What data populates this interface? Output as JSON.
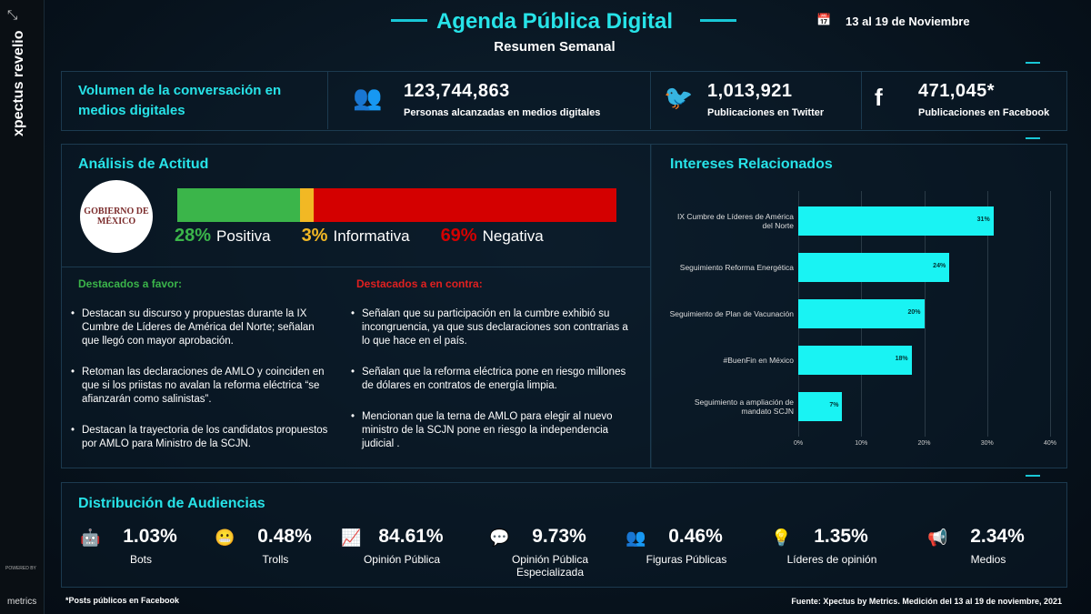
{
  "header": {
    "title": "Agenda Pública Digital",
    "subtitle": "Resumen Semanal",
    "date": "13 al 19 de Noviembre",
    "brand": "xpectus revelio",
    "powered": "POWERED BY",
    "powered_brand": "metrics"
  },
  "volume": {
    "label": "Volumen de la conversación en medios digitales",
    "stats": [
      {
        "value": "123,744,863",
        "label": "Personas alcanzadas en medios digitales"
      },
      {
        "value": "1,013,921",
        "label": "Publicaciones en Twitter"
      },
      {
        "value": "471,045*",
        "label": "Publicaciones en Facebook"
      }
    ]
  },
  "logo": "GOBIERNO DE MÉXICO",
  "favor": {
    "title": "Destacados a favor:",
    "items": [
      "Destacan su discurso y propuestas durante la IX Cumbre de Líderes de América del Norte; señalan que llegó con mayor aprobación.",
      "Retoman las declaraciones de AMLO y coinciden en que si los priistas no avalan la reforma eléctrica “se afianzarán como salinistas”.",
      "Destacan la trayectoria de los candidatos propuestos por AMLO para Ministro de la SCJN."
    ]
  },
  "contra": {
    "title": "Destacados a en contra:",
    "items": [
      "Señalan que su participación en la cumbre exhibió su incongruencia, ya que sus declaraciones son contrarias a lo que hace en el país.",
      "Señalan que la reforma eléctrica pone en riesgo millones de dólares en contratos de energía limpia.",
      "Mencionan que la terna de AMLO para elegir al nuevo ministro de la SCJN pone en riesgo la independencia judicial ."
    ]
  },
  "chart_data": [
    {
      "type": "stacked-bar",
      "title": "Análisis de Actitud",
      "xlim": [
        0,
        100
      ],
      "series": [
        {
          "name": "Positiva",
          "color": "#3bb54a",
          "values": [
            28
          ],
          "value_labels": [
            "28%"
          ]
        },
        {
          "name": "Informativa",
          "color": "#f2b824",
          "values": [
            3
          ],
          "value_labels": [
            "3%"
          ]
        },
        {
          "name": "Negativa",
          "color": "#d40000",
          "values": [
            69
          ],
          "value_labels": [
            "69%"
          ]
        }
      ]
    },
    {
      "type": "bar",
      "orientation": "horizontal",
      "title": "Intereses Relacionados",
      "categories": [
        "IX Cumbre de Líderes de América del Norte",
        "Seguimiento Reforma Energética",
        "Seguimiento de Plan de Vacunación",
        "#BuenFin en México",
        "Seguimiento a ampliación de mandato SCJN"
      ],
      "values": [
        31,
        24,
        20,
        18,
        7
      ],
      "value_labels": [
        "31%",
        "24%",
        "20%",
        "18%",
        "7%"
      ],
      "color": "#19f3f3",
      "xlim": [
        0,
        40
      ],
      "xticks": [
        {
          "value": 0,
          "label": "0%"
        },
        {
          "value": 10,
          "label": "10%"
        },
        {
          "value": 20,
          "label": "20%"
        },
        {
          "value": 30,
          "label": "30%"
        },
        {
          "value": 40,
          "label": "40%"
        }
      ],
      "grid": true
    }
  ],
  "audiences": {
    "title": "Distribución de Audiencias",
    "items": [
      {
        "value": "1.03%",
        "label": "Bots"
      },
      {
        "value": "0.48%",
        "label": "Trolls"
      },
      {
        "value": "84.61%",
        "label": "Opinión Pública"
      },
      {
        "value": "9.73%",
        "label": "Opinión Pública Especializada"
      },
      {
        "value": "0.46%",
        "label": "Figuras Públicas"
      },
      {
        "value": "1.35%",
        "label": "Líderes de opinión"
      },
      {
        "value": "2.34%",
        "label": "Medios"
      }
    ]
  },
  "footer": {
    "note": "*Posts públicos en Facebook",
    "source": "Fuente: Xpectus by Metrics. Medición del 13 al 19 de noviembre, 2021"
  }
}
